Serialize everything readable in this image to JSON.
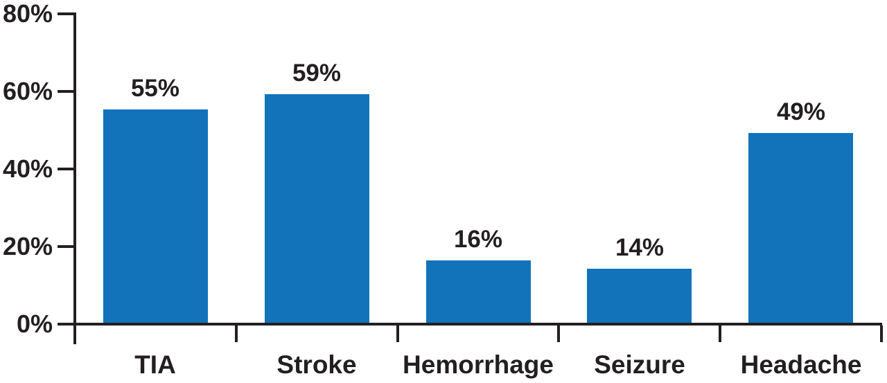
{
  "chart_data": {
    "type": "bar",
    "title": "",
    "xlabel": "",
    "ylabel": "",
    "categories": [
      "TIA",
      "Stroke",
      "Hemorrhage",
      "Seizure",
      "Headache"
    ],
    "values": [
      55,
      59,
      16,
      14,
      49
    ],
    "value_labels": [
      "55%",
      "59%",
      "16%",
      "14%",
      "49%"
    ],
    "y_ticks": [
      {
        "value": 80,
        "label": "80%"
      },
      {
        "value": 60,
        "label": "60%"
      },
      {
        "value": 40,
        "label": "40%"
      },
      {
        "value": 20,
        "label": "20%"
      },
      {
        "value": 0,
        "label": "0%"
      }
    ],
    "ylim": [
      0,
      80
    ],
    "grid": "off",
    "legend": "none",
    "bar_color": "#1273BB",
    "axis_color": "#231F20",
    "text_color": "#231F20",
    "background_color": "#FFFFFF"
  }
}
